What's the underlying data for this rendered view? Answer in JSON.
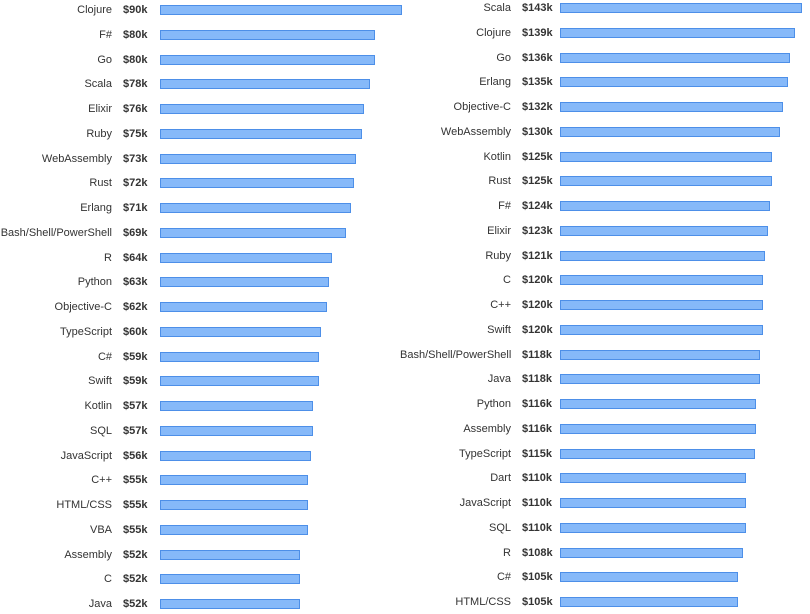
{
  "colors": {
    "bar_fill": "#86b9f9",
    "bar_border": "#4d8fe8"
  },
  "chart_data": [
    {
      "type": "bar",
      "orientation": "horizontal",
      "title": "",
      "xlabel": "",
      "ylabel": "",
      "xlim": [
        0,
        90
      ],
      "categories": [
        "Clojure",
        "F#",
        "Go",
        "Scala",
        "Elixir",
        "Ruby",
        "WebAssembly",
        "Rust",
        "Erlang",
        "Bash/Shell/PowerShell",
        "R",
        "Python",
        "Objective-C",
        "TypeScript",
        "C#",
        "Swift",
        "Kotlin",
        "SQL",
        "JavaScript",
        "C++",
        "HTML/CSS",
        "VBA",
        "Assembly",
        "C",
        "Java"
      ],
      "values": [
        90,
        80,
        80,
        78,
        76,
        75,
        73,
        72,
        71,
        69,
        64,
        63,
        62,
        60,
        59,
        59,
        57,
        57,
        56,
        55,
        55,
        55,
        52,
        52,
        52
      ],
      "value_labels": [
        "$90k",
        "$80k",
        "$80k",
        "$78k",
        "$76k",
        "$75k",
        "$73k",
        "$72k",
        "$71k",
        "$69k",
        "$64k",
        "$63k",
        "$62k",
        "$60k",
        "$59k",
        "$59k",
        "$57k",
        "$57k",
        "$56k",
        "$55k",
        "$55k",
        "$55k",
        "$52k",
        "$52k",
        "$52k"
      ]
    },
    {
      "type": "bar",
      "orientation": "horizontal",
      "title": "",
      "xlabel": "",
      "ylabel": "",
      "xlim": [
        0,
        143
      ],
      "categories": [
        "Scala",
        "Clojure",
        "Go",
        "Erlang",
        "Objective-C",
        "WebAssembly",
        "Kotlin",
        "Rust",
        "F#",
        "Elixir",
        "Ruby",
        "C",
        "C++",
        "Swift",
        "Bash/Shell/PowerShell",
        "Java",
        "Python",
        "Assembly",
        "TypeScript",
        "Dart",
        "JavaScript",
        "SQL",
        "R",
        "C#",
        "HTML/CSS"
      ],
      "values": [
        143,
        139,
        136,
        135,
        132,
        130,
        125,
        125,
        124,
        123,
        121,
        120,
        120,
        120,
        118,
        118,
        116,
        116,
        115,
        110,
        110,
        110,
        108,
        105,
        105
      ],
      "value_labels": [
        "$143k",
        "$139k",
        "$136k",
        "$135k",
        "$132k",
        "$130k",
        "$125k",
        "$125k",
        "$124k",
        "$123k",
        "$121k",
        "$120k",
        "$120k",
        "$120k",
        "$118k",
        "$118k",
        "$116k",
        "$116k",
        "$115k",
        "$110k",
        "$110k",
        "$110k",
        "$108k",
        "$105k",
        "$105k"
      ]
    }
  ]
}
